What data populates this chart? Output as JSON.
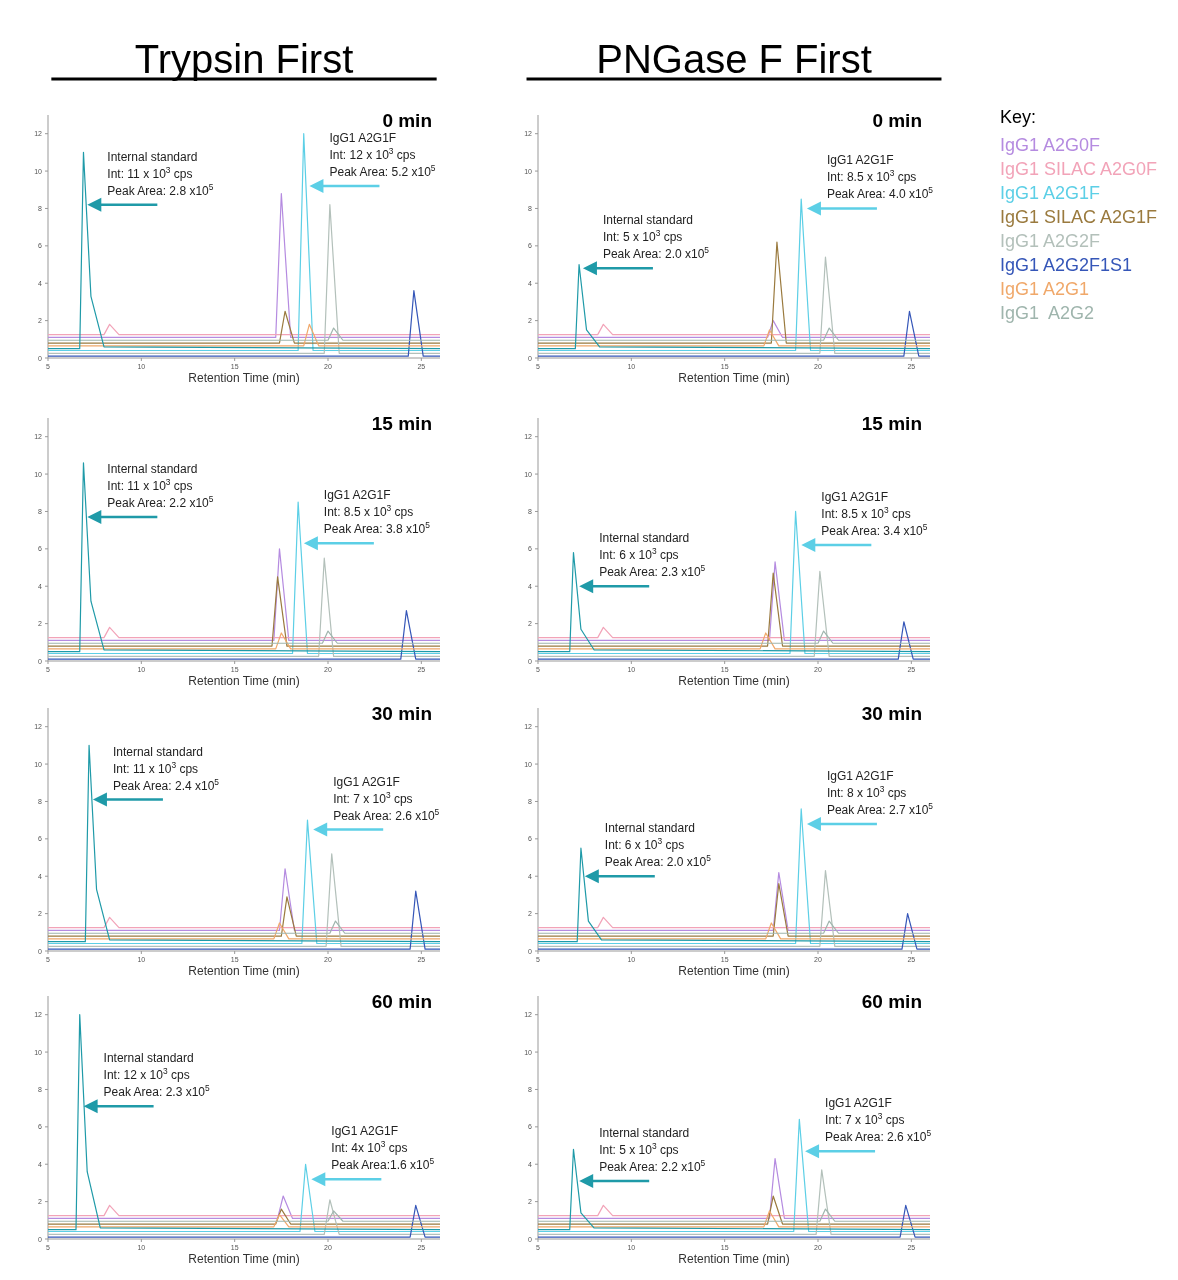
{
  "chart_data": [
    {
      "type": "line",
      "subtitle": "Trypsin First",
      "title": "0 min",
      "xlabel": "Retention Time (min)",
      "xlim": [
        5,
        26
      ],
      "xticks": [
        5,
        10,
        15,
        20,
        25
      ],
      "ylim": [
        0,
        13
      ],
      "yticks": [
        0,
        2,
        4,
        6,
        8,
        10,
        12
      ],
      "legend": false,
      "annotations": [
        {
          "text": "Internal standard\nInt: 11 x 10$^{3}$ cps\nPeak Area: 2.8 x10$^{5}$",
          "x": 7.0,
          "y": 8.2
        },
        {
          "text": "IgG1 A2G1F\nInt: 12 x 10$^{3}$ cps\nPeak Area: 5.2 x10$^{5}$",
          "x": 18.9,
          "y": 9.2
        }
      ],
      "series": [
        {
          "color": "#b58be0",
          "x": [
            5,
            17.2,
            17.5,
            18,
            26
          ],
          "values": [
            1.1,
            1.1,
            8.8,
            1.1,
            1.1
          ]
        },
        {
          "color": "#f2a3b8",
          "x": [
            5,
            8,
            8.3,
            8.8,
            26
          ],
          "values": [
            1.25,
            1.25,
            1.8,
            1.25,
            1.25
          ]
        },
        {
          "color": "#5ccfe6",
          "x": [
            5,
            18.4,
            18.7,
            19.2,
            26
          ],
          "values": [
            0.4,
            0.4,
            12,
            0.4,
            0.4
          ]
        },
        {
          "color": "#9a7a3e",
          "x": [
            5,
            17.4,
            17.7,
            18.2,
            26
          ],
          "values": [
            0.8,
            0.8,
            2.5,
            0.8,
            0.8
          ]
        },
        {
          "color": "#b3c0ba",
          "x": [
            5,
            19.8,
            20.1,
            20.6,
            26
          ],
          "values": [
            0.25,
            0.25,
            8.2,
            0.25,
            0.25
          ]
        },
        {
          "color": "#3556b8",
          "x": [
            5,
            24.3,
            24.6,
            25.1,
            26
          ],
          "values": [
            0.1,
            0.1,
            3.6,
            0.1,
            0.1
          ]
        },
        {
          "color": "#f0a86a",
          "x": [
            5,
            18.7,
            19.0,
            19.5,
            26
          ],
          "values": [
            0.65,
            0.65,
            1.8,
            0.65,
            0.65
          ]
        },
        {
          "color": "#9fb5ad",
          "x": [
            5,
            20,
            20.3,
            20.8,
            26
          ],
          "values": [
            0.95,
            0.95,
            1.6,
            0.95,
            0.95
          ]
        },
        {
          "color": "#1f9aa8",
          "x": [
            5,
            6.7,
            6.9,
            7.3,
            8,
            26
          ],
          "values": [
            0.5,
            0.5,
            11,
            3.3,
            0.6,
            0.5
          ]
        }
      ]
    },
    {
      "type": "line",
      "subtitle": "PNGase F First",
      "title": "0 min",
      "xlabel": "Retention Time (min)",
      "xlim": [
        5,
        26
      ],
      "xticks": [
        5,
        10,
        15,
        20,
        25
      ],
      "ylim": [
        0,
        13
      ],
      "yticks": [
        0,
        2,
        4,
        6,
        8,
        10,
        12
      ],
      "legend": "right",
      "legend_title": "Key:",
      "annotations": [
        {
          "text": "Internal standard\nInt: 5 x 10$^{3}$ cps\nPeak Area: 2.0 x10$^{5}$",
          "x": 7.3,
          "y": 4.8
        },
        {
          "text": "IgG1 A2G1F\nInt: 8.5 x 10$^{3}$ cps\nPeak Area: 4.0 x10$^{5}$",
          "x": 19.3,
          "y": 8.0
        }
      ],
      "series": [
        {
          "name": "IgG1 A2G0F",
          "color": "#b58be0",
          "x": [
            5,
            17.3,
            17.6,
            18.1,
            26
          ],
          "values": [
            1.1,
            1.1,
            2.0,
            1.1,
            1.1
          ]
        },
        {
          "name": "IgG1 SILAC A2G0F",
          "color": "#f2a3b8",
          "x": [
            5,
            8.2,
            8.5,
            9,
            26
          ],
          "values": [
            1.25,
            1.25,
            1.8,
            1.25,
            1.25
          ]
        },
        {
          "name": "IgG1 A2G1F",
          "color": "#5ccfe6",
          "x": [
            5,
            18.8,
            19.1,
            19.6,
            26
          ],
          "values": [
            0.4,
            0.4,
            8.5,
            0.4,
            0.4
          ]
        },
        {
          "name": "IgG1 SILAC A2G1F",
          "color": "#9a7a3e",
          "x": [
            5,
            17.5,
            17.8,
            18.3,
            26
          ],
          "values": [
            0.8,
            0.8,
            6.2,
            0.8,
            0.8
          ]
        },
        {
          "name": "IgG1 A2G2F",
          "color": "#b3c0ba",
          "x": [
            5,
            20.1,
            20.4,
            20.9,
            26
          ],
          "values": [
            0.25,
            0.25,
            5.4,
            0.25,
            0.25
          ]
        },
        {
          "name": "IgG1 A2G2F1S1",
          "color": "#3556b8",
          "x": [
            5,
            24.6,
            24.9,
            25.4,
            26
          ],
          "values": [
            0.1,
            0.1,
            2.5,
            0.1,
            0.1
          ]
        },
        {
          "name": "IgG1 A2G1",
          "color": "#f0a86a",
          "x": [
            5,
            17.1,
            17.4,
            17.9,
            26
          ],
          "values": [
            0.65,
            0.65,
            1.5,
            0.65,
            0.65
          ]
        },
        {
          "name": "IgG1  A2G2",
          "color": "#9fb5ad",
          "x": [
            5,
            20.3,
            20.6,
            21.1,
            26
          ],
          "values": [
            0.95,
            0.95,
            1.6,
            0.95,
            0.95
          ]
        },
        {
          "color": "#1f9aa8",
          "x": [
            5,
            7.0,
            7.2,
            7.6,
            8.3,
            26
          ],
          "values": [
            0.5,
            0.5,
            5,
            1.5,
            0.6,
            0.5
          ]
        }
      ]
    },
    {
      "type": "line",
      "title": "15 min",
      "xlabel": "Retention Time (min)",
      "xlim": [
        5,
        26
      ],
      "xticks": [
        5,
        10,
        15,
        20,
        25
      ],
      "ylim": [
        0,
        13
      ],
      "yticks": [
        0,
        2,
        4,
        6,
        8,
        10,
        12
      ],
      "legend": false,
      "annotations": [
        {
          "text": "Internal standard\nInt: 11 x 10$^{3}$ cps\nPeak Area: 2.2 x10$^{5}$",
          "x": 7.0,
          "y": 7.7
        },
        {
          "text": "IgG1 A2G1F\nInt: 8.5 x 10$^{3}$ cps\nPeak Area: 3.8 x10$^{5}$",
          "x": 18.6,
          "y": 6.3
        }
      ],
      "series": [
        {
          "color": "#b58be0",
          "x": [
            5,
            17.1,
            17.4,
            17.9,
            26
          ],
          "values": [
            1.1,
            1.1,
            6.0,
            1.1,
            1.1
          ]
        },
        {
          "color": "#f2a3b8",
          "x": [
            5,
            8,
            8.3,
            8.8,
            26
          ],
          "values": [
            1.25,
            1.25,
            1.8,
            1.25,
            1.25
          ]
        },
        {
          "color": "#5ccfe6",
          "x": [
            5,
            18.1,
            18.4,
            18.9,
            26
          ],
          "values": [
            0.4,
            0.4,
            8.5,
            0.4,
            0.4
          ]
        },
        {
          "color": "#9a7a3e",
          "x": [
            5,
            17.0,
            17.3,
            17.8,
            26
          ],
          "values": [
            0.8,
            0.8,
            4.5,
            0.8,
            0.8
          ]
        },
        {
          "color": "#b3c0ba",
          "x": [
            5,
            19.5,
            19.8,
            20.3,
            26
          ],
          "values": [
            0.25,
            0.25,
            5.5,
            0.25,
            0.25
          ]
        },
        {
          "color": "#3556b8",
          "x": [
            5,
            23.9,
            24.2,
            24.7,
            26
          ],
          "values": [
            0.1,
            0.1,
            2.7,
            0.1,
            0.1
          ]
        },
        {
          "color": "#f0a86a",
          "x": [
            5,
            17.2,
            17.5,
            18,
            26
          ],
          "values": [
            0.65,
            0.65,
            1.5,
            0.65,
            0.65
          ]
        },
        {
          "color": "#9fb5ad",
          "x": [
            5,
            19.7,
            20.0,
            20.5,
            26
          ],
          "values": [
            0.95,
            0.95,
            1.6,
            0.95,
            0.95
          ]
        },
        {
          "color": "#1f9aa8",
          "x": [
            5,
            6.7,
            6.9,
            7.3,
            8,
            26
          ],
          "values": [
            0.5,
            0.5,
            10.6,
            3.2,
            0.6,
            0.5
          ]
        }
      ]
    },
    {
      "type": "line",
      "title": "15 min",
      "xlabel": "Retention Time (min)",
      "xlim": [
        5,
        26
      ],
      "xticks": [
        5,
        10,
        15,
        20,
        25
      ],
      "ylim": [
        0,
        13
      ],
      "yticks": [
        0,
        2,
        4,
        6,
        8,
        10,
        12
      ],
      "legend": false,
      "annotations": [
        {
          "text": "Internal standard\nInt: 6 x 10$^{3}$ cps\nPeak Area: 2.3 x10$^{5}$",
          "x": 7.1,
          "y": 4.0
        },
        {
          "text": "IgG1 A2G1F\nInt: 8.5 x 10$^{3}$ cps\nPeak Area: 3.4 x10$^{5}$",
          "x": 19.0,
          "y": 6.2
        }
      ],
      "series": [
        {
          "color": "#b58be0",
          "x": [
            5,
            17.4,
            17.7,
            18.2,
            26
          ],
          "values": [
            1.1,
            1.1,
            5.3,
            1.1,
            1.1
          ]
        },
        {
          "color": "#f2a3b8",
          "x": [
            5,
            8.2,
            8.5,
            9,
            26
          ],
          "values": [
            1.25,
            1.25,
            1.8,
            1.25,
            1.25
          ]
        },
        {
          "color": "#5ccfe6",
          "x": [
            5,
            18.5,
            18.8,
            19.3,
            26
          ],
          "values": [
            0.4,
            0.4,
            8.0,
            0.4,
            0.4
          ]
        },
        {
          "color": "#9a7a3e",
          "x": [
            5,
            17.3,
            17.6,
            18.1,
            26
          ],
          "values": [
            0.8,
            0.8,
            4.7,
            0.8,
            0.8
          ]
        },
        {
          "color": "#b3c0ba",
          "x": [
            5,
            19.8,
            20.1,
            20.6,
            26
          ],
          "values": [
            0.25,
            0.25,
            4.8,
            0.25,
            0.25
          ]
        },
        {
          "color": "#3556b8",
          "x": [
            5,
            24.3,
            24.6,
            25.1,
            26
          ],
          "values": [
            0.1,
            0.1,
            2.1,
            0.1,
            0.1
          ]
        },
        {
          "color": "#f0a86a",
          "x": [
            5,
            16.9,
            17.2,
            17.7,
            26
          ],
          "values": [
            0.65,
            0.65,
            1.5,
            0.65,
            0.65
          ]
        },
        {
          "color": "#9fb5ad",
          "x": [
            5,
            20,
            20.3,
            20.8,
            26
          ],
          "values": [
            0.95,
            0.95,
            1.6,
            0.95,
            0.95
          ]
        },
        {
          "color": "#1f9aa8",
          "x": [
            5,
            6.7,
            6.9,
            7.3,
            8,
            26
          ],
          "values": [
            0.5,
            0.5,
            5.8,
            1.7,
            0.6,
            0.5
          ]
        }
      ]
    },
    {
      "type": "line",
      "title": "30 min",
      "xlabel": "Retention Time (min)",
      "xlim": [
        5,
        26
      ],
      "xticks": [
        5,
        10,
        15,
        20,
        25
      ],
      "ylim": [
        0,
        13
      ],
      "yticks": [
        0,
        2,
        4,
        6,
        8,
        10,
        12
      ],
      "legend": false,
      "annotations": [
        {
          "text": "Internal standard\nInt: 11 x 10$^{3}$ cps\nPeak Area: 2.4 x10$^{5}$",
          "x": 7.3,
          "y": 8.1
        },
        {
          "text": "IgG1 A2G1F\nInt: 7 x 10$^{3}$ cps\nPeak Area: 2.6 x10$^{5}$",
          "x": 19.1,
          "y": 6.5
        }
      ],
      "series": [
        {
          "color": "#b58be0",
          "x": [
            5,
            17.4,
            17.7,
            18.2,
            26
          ],
          "values": [
            1.1,
            1.1,
            4.4,
            1.1,
            1.1
          ]
        },
        {
          "color": "#f2a3b8",
          "x": [
            5,
            8,
            8.3,
            8.8,
            26
          ],
          "values": [
            1.25,
            1.25,
            1.8,
            1.25,
            1.25
          ]
        },
        {
          "color": "#5ccfe6",
          "x": [
            5,
            18.6,
            18.9,
            19.4,
            26
          ],
          "values": [
            0.4,
            0.4,
            7.0,
            0.4,
            0.4
          ]
        },
        {
          "color": "#9a7a3e",
          "x": [
            5,
            17.5,
            17.8,
            18.3,
            26
          ],
          "values": [
            0.8,
            0.8,
            2.9,
            0.8,
            0.8
          ]
        },
        {
          "color": "#b3c0ba",
          "x": [
            5,
            19.9,
            20.2,
            20.7,
            26
          ],
          "values": [
            0.25,
            0.25,
            5.2,
            0.25,
            0.25
          ]
        },
        {
          "color": "#3556b8",
          "x": [
            5,
            24.4,
            24.7,
            25.2,
            26
          ],
          "values": [
            0.1,
            0.1,
            3.2,
            0.1,
            0.1
          ]
        },
        {
          "color": "#f0a86a",
          "x": [
            5,
            17.1,
            17.4,
            17.9,
            26
          ],
          "values": [
            0.65,
            0.65,
            1.5,
            0.65,
            0.65
          ]
        },
        {
          "color": "#9fb5ad",
          "x": [
            5,
            20.1,
            20.4,
            20.9,
            26
          ],
          "values": [
            0.95,
            0.95,
            1.6,
            0.95,
            0.95
          ]
        },
        {
          "color": "#1f9aa8",
          "x": [
            5,
            7.0,
            7.2,
            7.6,
            8.3,
            26
          ],
          "values": [
            0.5,
            0.5,
            11,
            3.3,
            0.6,
            0.5
          ]
        }
      ]
    },
    {
      "type": "line",
      "title": "30 min",
      "xlabel": "Retention Time (min)",
      "xlim": [
        5,
        26
      ],
      "xticks": [
        5,
        10,
        15,
        20,
        25
      ],
      "ylim": [
        0,
        13
      ],
      "yticks": [
        0,
        2,
        4,
        6,
        8,
        10,
        12
      ],
      "legend": false,
      "annotations": [
        {
          "text": "Internal standard\nInt: 6 x 10$^{3}$ cps\nPeak Area: 2.0 x10$^{5}$",
          "x": 7.4,
          "y": 4.0
        },
        {
          "text": "IgG1 A2G1F\nInt: 8 x 10$^{3}$ cps\nPeak Area: 2.7 x10$^{5}$",
          "x": 19.3,
          "y": 6.8
        }
      ],
      "series": [
        {
          "color": "#b58be0",
          "x": [
            5,
            17.6,
            17.9,
            18.4,
            26
          ],
          "values": [
            1.1,
            1.1,
            4.2,
            1.1,
            1.1
          ]
        },
        {
          "color": "#f2a3b8",
          "x": [
            5,
            8.2,
            8.5,
            9,
            26
          ],
          "values": [
            1.25,
            1.25,
            1.8,
            1.25,
            1.25
          ]
        },
        {
          "color": "#5ccfe6",
          "x": [
            5,
            18.8,
            19.1,
            19.6,
            26
          ],
          "values": [
            0.4,
            0.4,
            7.6,
            0.4,
            0.4
          ]
        },
        {
          "color": "#9a7a3e",
          "x": [
            5,
            17.6,
            17.9,
            18.4,
            26
          ],
          "values": [
            0.8,
            0.8,
            3.6,
            0.8,
            0.8
          ]
        },
        {
          "color": "#b3c0ba",
          "x": [
            5,
            20.1,
            20.4,
            20.9,
            26
          ],
          "values": [
            0.25,
            0.25,
            4.3,
            0.25,
            0.25
          ]
        },
        {
          "color": "#3556b8",
          "x": [
            5,
            24.5,
            24.8,
            25.3,
            26
          ],
          "values": [
            0.1,
            0.1,
            2.0,
            0.1,
            0.1
          ]
        },
        {
          "color": "#f0a86a",
          "x": [
            5,
            17.2,
            17.5,
            18,
            26
          ],
          "values": [
            0.65,
            0.65,
            1.5,
            0.65,
            0.65
          ]
        },
        {
          "color": "#9fb5ad",
          "x": [
            5,
            20.3,
            20.6,
            21.1,
            26
          ],
          "values": [
            0.95,
            0.95,
            1.6,
            0.95,
            0.95
          ]
        },
        {
          "color": "#1f9aa8",
          "x": [
            5,
            7.1,
            7.3,
            7.7,
            8.4,
            26
          ],
          "values": [
            0.5,
            0.5,
            5.5,
            1.6,
            0.6,
            0.5
          ]
        }
      ]
    },
    {
      "type": "line",
      "title": "60 min",
      "xlabel": "Retention Time (min)",
      "xlim": [
        5,
        26
      ],
      "xticks": [
        5,
        10,
        15,
        20,
        25
      ],
      "ylim": [
        0,
        13
      ],
      "yticks": [
        0,
        2,
        4,
        6,
        8,
        10,
        12
      ],
      "legend": false,
      "annotations": [
        {
          "text": "Internal standard\nInt: 12 x 10$^{3}$ cps\nPeak Area: 2.3 x10$^{5}$",
          "x": 6.8,
          "y": 7.1
        },
        {
          "text": "IgG1 A2G1F\nInt: 4x 10$^{3}$ cps\nPeak Area:1.6 x10$^{5}$",
          "x": 19.0,
          "y": 3.2
        }
      ],
      "series": [
        {
          "color": "#b58be0",
          "x": [
            5,
            17.3,
            17.6,
            18.1,
            26
          ],
          "values": [
            1.1,
            1.1,
            2.3,
            1.1,
            1.1
          ]
        },
        {
          "color": "#f2a3b8",
          "x": [
            5,
            8,
            8.3,
            8.8,
            26
          ],
          "values": [
            1.25,
            1.25,
            1.8,
            1.25,
            1.25
          ]
        },
        {
          "color": "#5ccfe6",
          "x": [
            5,
            18.5,
            18.8,
            19.3,
            26
          ],
          "values": [
            0.4,
            0.4,
            4.0,
            0.4,
            0.4
          ]
        },
        {
          "color": "#9a7a3e",
          "x": [
            5,
            17.2,
            17.5,
            18,
            26
          ],
          "values": [
            0.8,
            0.8,
            1.6,
            0.8,
            0.8
          ]
        },
        {
          "color": "#b3c0ba",
          "x": [
            5,
            19.8,
            20.1,
            20.6,
            26
          ],
          "values": [
            0.25,
            0.25,
            2.1,
            0.25,
            0.25
          ]
        },
        {
          "color": "#3556b8",
          "x": [
            5,
            24.4,
            24.7,
            25.2,
            26
          ],
          "values": [
            0.1,
            0.1,
            1.8,
            0.1,
            0.1
          ]
        },
        {
          "color": "#f0a86a",
          "x": [
            5,
            17.1,
            17.4,
            17.9,
            26
          ],
          "values": [
            0.65,
            0.65,
            1.3,
            0.65,
            0.65
          ]
        },
        {
          "color": "#9fb5ad",
          "x": [
            5,
            20,
            20.3,
            20.8,
            26
          ],
          "values": [
            0.95,
            0.95,
            1.5,
            0.95,
            0.95
          ]
        },
        {
          "color": "#1f9aa8",
          "x": [
            5,
            6.5,
            6.7,
            7.1,
            7.8,
            26
          ],
          "values": [
            0.5,
            0.5,
            12,
            3.6,
            0.6,
            0.5
          ]
        }
      ]
    },
    {
      "type": "line",
      "title": "60 min",
      "xlabel": "Retention Time (min)",
      "xlim": [
        5,
        26
      ],
      "xticks": [
        5,
        10,
        15,
        20,
        25
      ],
      "ylim": [
        0,
        13
      ],
      "yticks": [
        0,
        2,
        4,
        6,
        8,
        10,
        12
      ],
      "legend": false,
      "annotations": [
        {
          "text": "Internal standard\nInt: 5 x 10$^{3}$ cps\nPeak Area: 2.2 x10$^{5}$",
          "x": 7.1,
          "y": 3.1
        },
        {
          "text": "IgG1 A2G1F\nInt: 7 x 10$^{3}$ cps\nPeak Area: 2.6 x10$^{5}$",
          "x": 19.2,
          "y": 4.7
        }
      ],
      "series": [
        {
          "color": "#b58be0",
          "x": [
            5,
            17.4,
            17.7,
            18.2,
            26
          ],
          "values": [
            1.1,
            1.1,
            4.3,
            1.1,
            1.1
          ]
        },
        {
          "color": "#f2a3b8",
          "x": [
            5,
            8.2,
            8.5,
            9,
            26
          ],
          "values": [
            1.25,
            1.25,
            1.8,
            1.25,
            1.25
          ]
        },
        {
          "color": "#5ccfe6",
          "x": [
            5,
            18.7,
            19.0,
            19.5,
            26
          ],
          "values": [
            0.4,
            0.4,
            6.4,
            0.4,
            0.4
          ]
        },
        {
          "color": "#9a7a3e",
          "x": [
            5,
            17.3,
            17.6,
            18.1,
            26
          ],
          "values": [
            0.8,
            0.8,
            2.3,
            0.8,
            0.8
          ]
        },
        {
          "color": "#b3c0ba",
          "x": [
            5,
            19.9,
            20.2,
            20.7,
            26
          ],
          "values": [
            0.25,
            0.25,
            3.7,
            0.25,
            0.25
          ]
        },
        {
          "color": "#3556b8",
          "x": [
            5,
            24.4,
            24.7,
            25.2,
            26
          ],
          "values": [
            0.1,
            0.1,
            1.8,
            0.1,
            0.1
          ]
        },
        {
          "color": "#f0a86a",
          "x": [
            5,
            17.1,
            17.4,
            17.9,
            26
          ],
          "values": [
            0.65,
            0.65,
            1.5,
            0.65,
            0.65
          ]
        },
        {
          "color": "#9fb5ad",
          "x": [
            5,
            20.1,
            20.4,
            20.9,
            26
          ],
          "values": [
            0.95,
            0.95,
            1.6,
            0.95,
            0.95
          ]
        },
        {
          "color": "#1f9aa8",
          "x": [
            5,
            6.7,
            6.9,
            7.3,
            8,
            26
          ],
          "values": [
            0.5,
            0.5,
            4.8,
            1.4,
            0.6,
            0.5
          ]
        }
      ]
    }
  ]
}
